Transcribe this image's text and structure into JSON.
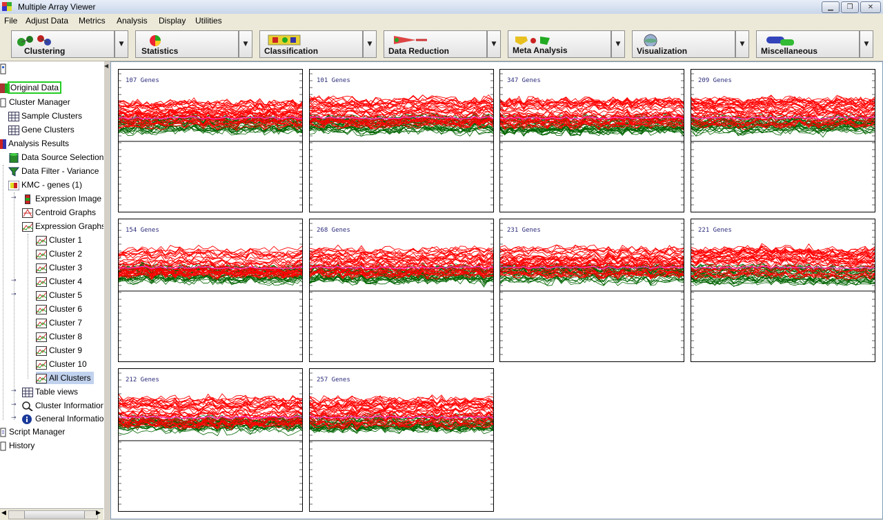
{
  "window": {
    "title": "Multiple Array Viewer",
    "buttons": [
      "minimize-button",
      "maximize-button",
      "close-button"
    ]
  },
  "menu": [
    "File",
    "Adjust Data",
    "Metrics",
    "Analysis",
    "Display",
    "Utilities"
  ],
  "toolbar": [
    {
      "label": "Clustering",
      "icon": "clustering-icon"
    },
    {
      "label": "Statistics",
      "icon": "statistics-icon"
    },
    {
      "label": "Classification",
      "icon": "classification-icon"
    },
    {
      "label": "Data Reduction",
      "icon": "data-reduction-icon"
    },
    {
      "label": "Meta Analysis",
      "icon": "meta-analysis-icon"
    },
    {
      "label": "Visualization",
      "icon": "visualization-icon"
    },
    {
      "label": "Miscellaneous",
      "icon": "miscellaneous-icon"
    }
  ],
  "tree": {
    "original_data": "Original Data",
    "cluster_manager": "Cluster Manager",
    "sample_clusters": "Sample Clusters",
    "gene_clusters": "Gene Clusters",
    "analysis_results": "Analysis Results",
    "data_source": "Data Source Selection",
    "data_filter": "Data Filter - Variance",
    "kmc": "KMC - genes (1)",
    "expression_image": "Expression Image",
    "centroid_graphs": "Centroid Graphs",
    "expression_graphs": "Expression Graphs",
    "clusters": [
      "Cluster 1",
      "Cluster 2",
      "Cluster 3",
      "Cluster 4",
      "Cluster 5",
      "Cluster 6",
      "Cluster 7",
      "Cluster 8",
      "Cluster 9",
      "Cluster 10"
    ],
    "all_clusters": "All Clusters",
    "table_views": "Table views",
    "cluster_information": "Cluster Information",
    "general_information": "General Information",
    "script_manager": "Script Manager",
    "history": "History"
  },
  "colors": {
    "selection": "#c1d2ee",
    "highlight_box": "#22cc22",
    "high": "#ff0000",
    "low": "#006400",
    "centroid": "#ff33cc"
  },
  "panels": [
    {
      "genes_label": "107 Genes",
      "seed": 1
    },
    {
      "genes_label": "101 Genes",
      "seed": 2
    },
    {
      "genes_label": "347 Genes",
      "seed": 3
    },
    {
      "genes_label": "209 Genes",
      "seed": 4
    },
    {
      "genes_label": "154 Genes",
      "seed": 5
    },
    {
      "genes_label": "268 Genes",
      "seed": 6
    },
    {
      "genes_label": "231 Genes",
      "seed": 7
    },
    {
      "genes_label": "221 Genes",
      "seed": 8
    },
    {
      "genes_label": "212 Genes",
      "seed": 9
    },
    {
      "genes_label": "257 Genes",
      "seed": 10
    }
  ]
}
